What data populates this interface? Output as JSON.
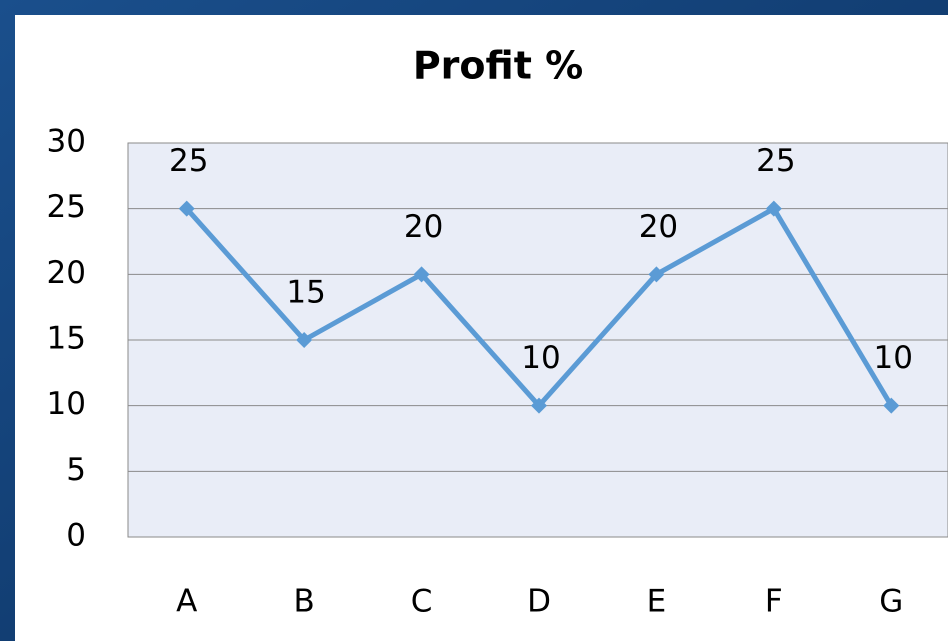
{
  "chart_data": {
    "type": "line",
    "title": "Profit %",
    "categories": [
      "A",
      "B",
      "C",
      "D",
      "E",
      "F",
      "G"
    ],
    "series": [
      {
        "name": "Profit %",
        "color": "#5b9bd5",
        "values": [
          25,
          15,
          20,
          10,
          20,
          25,
          10
        ]
      }
    ],
    "ylim": [
      0,
      30
    ],
    "yticks": [
      0,
      5,
      10,
      15,
      20,
      25,
      30
    ],
    "grid": true,
    "data_labels": true
  }
}
